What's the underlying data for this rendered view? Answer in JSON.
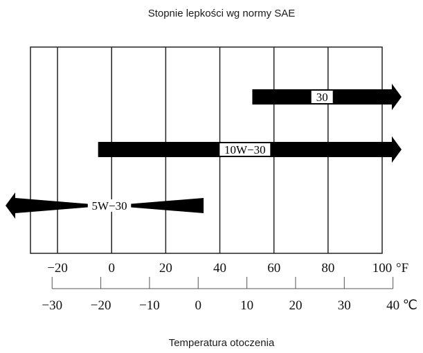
{
  "chart_data": {
    "type": "range-bar",
    "title": "Stopnie lepkości wg normy SAE",
    "xlabel": "Temperatura otoczenia",
    "axes": {
      "fahrenheit": {
        "unit_label": "°F",
        "ticks": [
          -20,
          0,
          20,
          40,
          60,
          80,
          100
        ],
        "tick_labels": [
          "−20",
          "0",
          "20",
          "40",
          "60",
          "80",
          "100"
        ]
      },
      "celsius": {
        "unit_label": "℃",
        "ticks": [
          -30,
          -20,
          -10,
          0,
          10,
          20,
          30,
          40
        ],
        "tick_labels": [
          "−30",
          "−20",
          "−10",
          "0",
          "10",
          "20",
          "30",
          "40"
        ]
      }
    },
    "xlim_f": [
      -20,
      100
    ],
    "grid": true,
    "series": [
      {
        "label": "30",
        "from_f": 52,
        "to_f": 100,
        "open_start": false,
        "open_end": true
      },
      {
        "label": "10W−30",
        "from_f": -5,
        "to_f": 100,
        "open_start": false,
        "open_end": true
      },
      {
        "label": "5W−30",
        "from_f": -20,
        "to_f": 34,
        "open_start": true,
        "open_end": false
      }
    ]
  }
}
